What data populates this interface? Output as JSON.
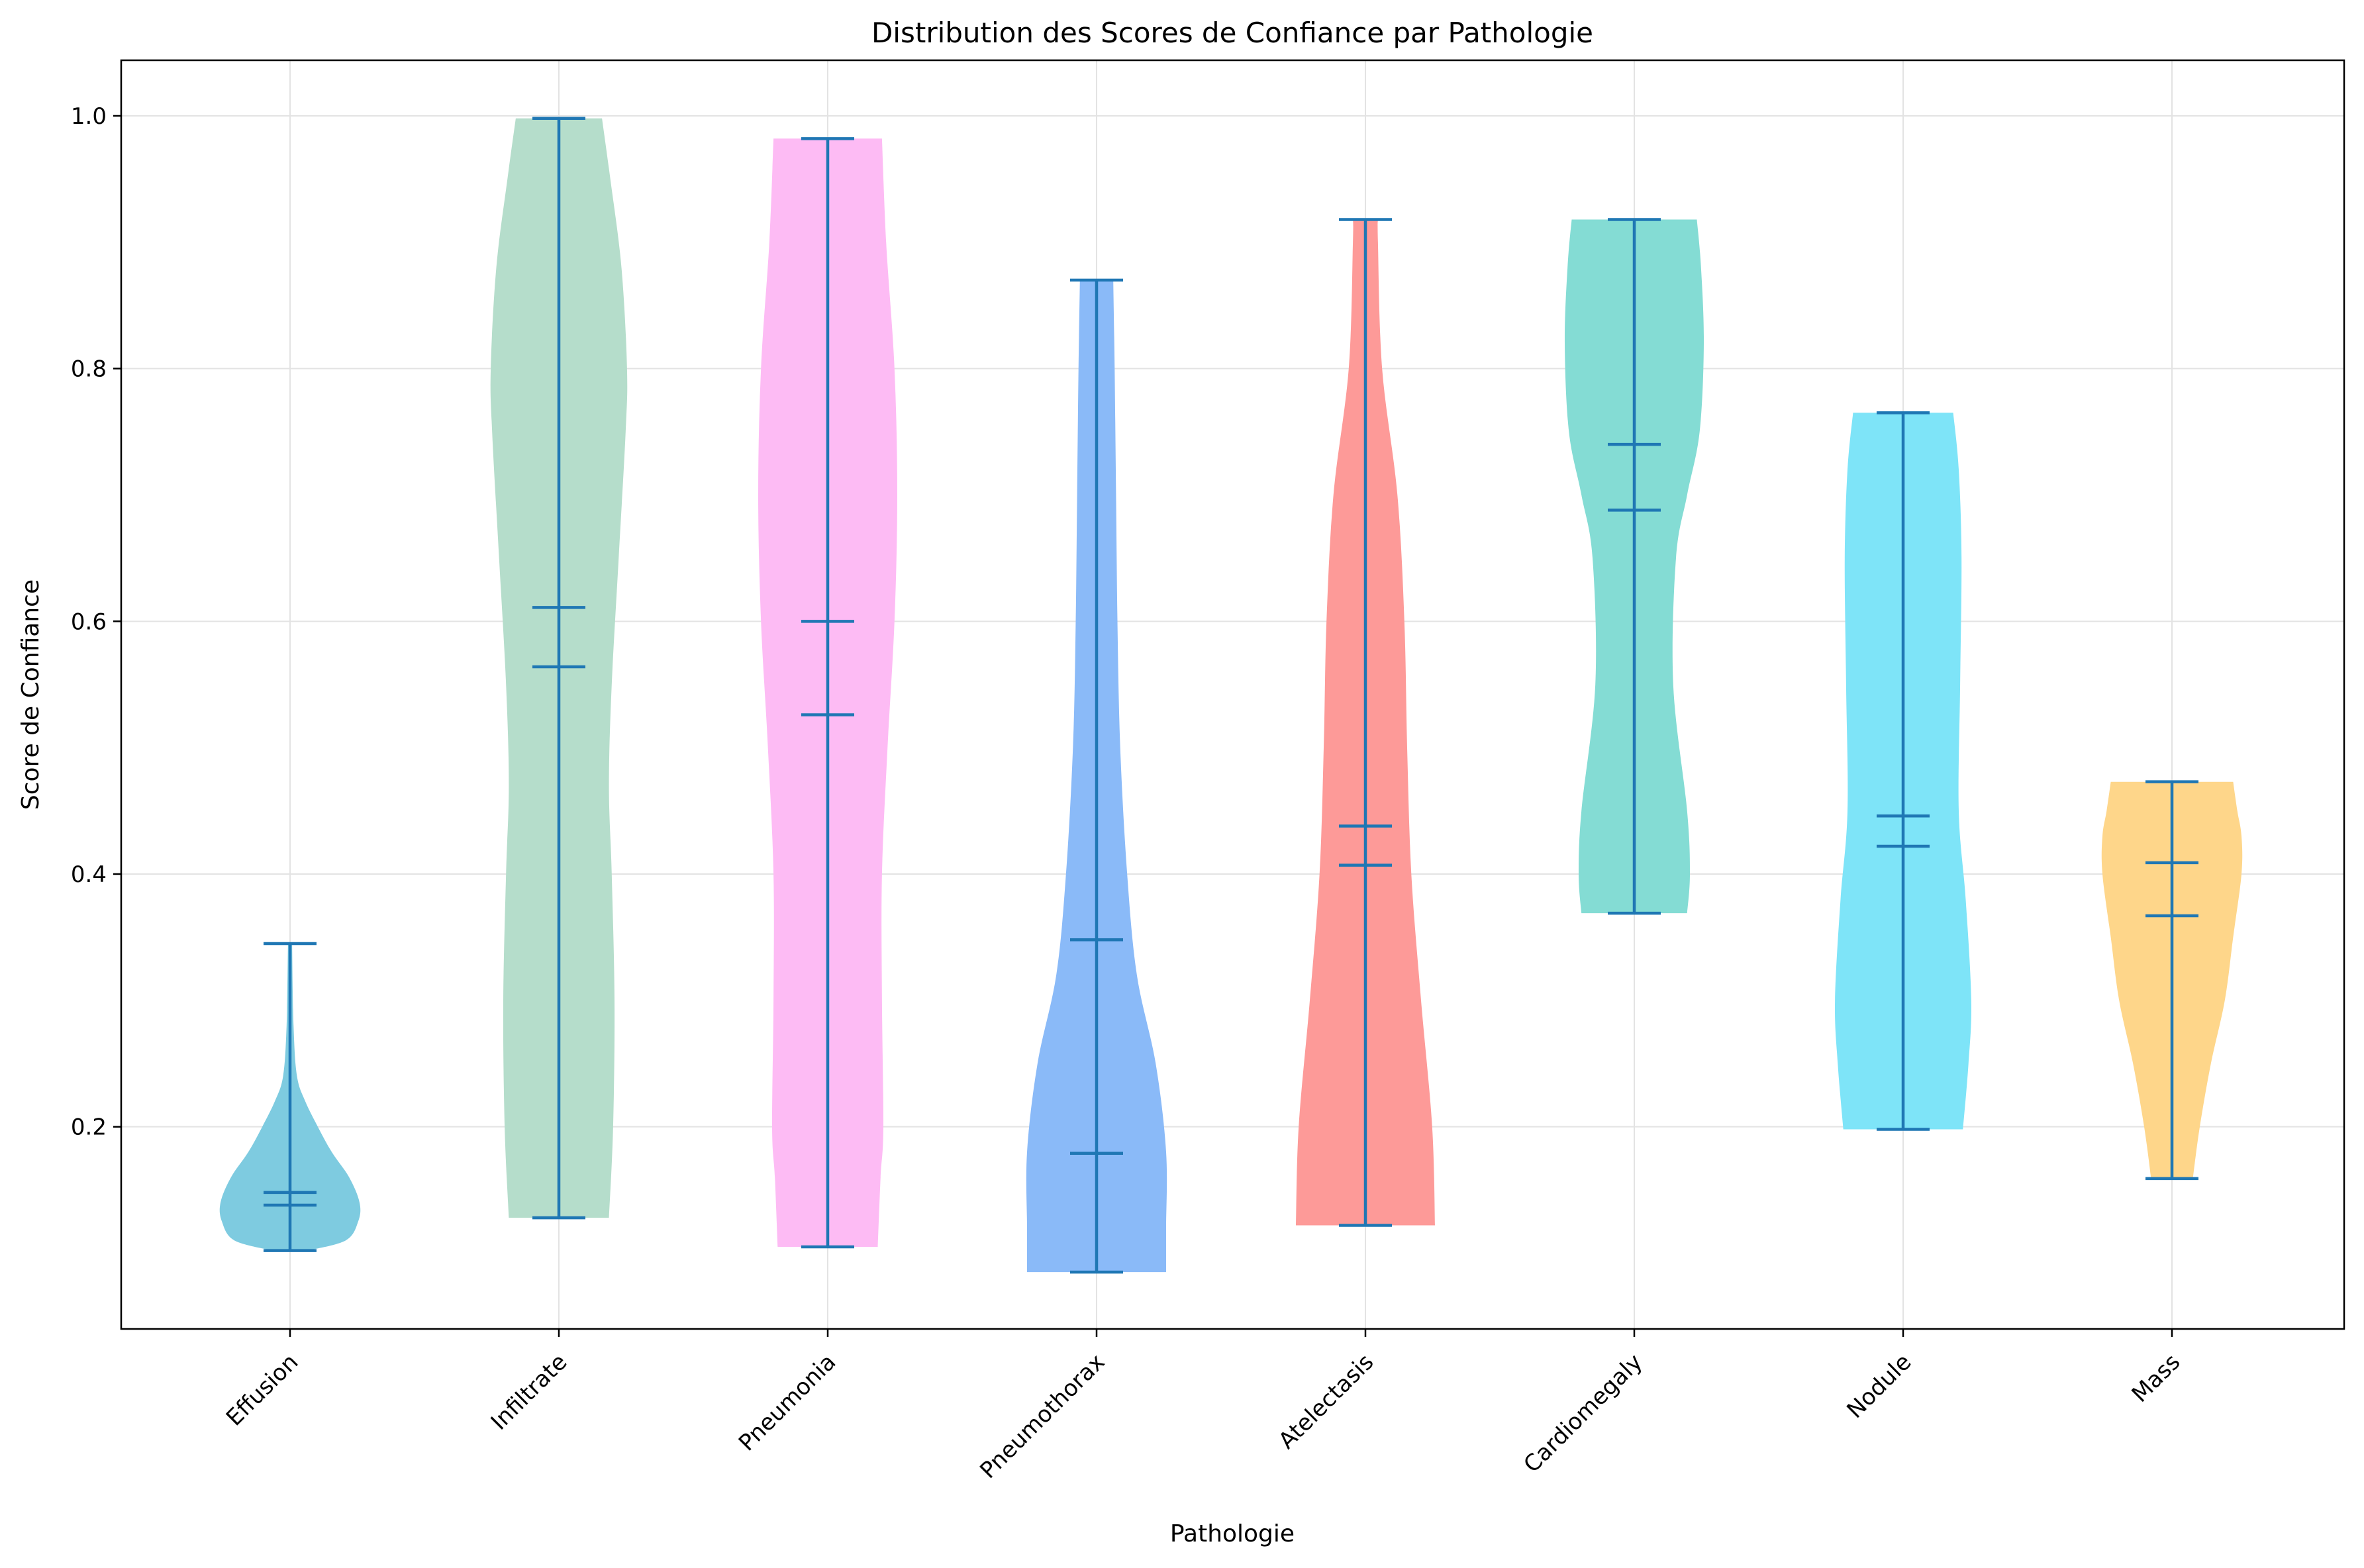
{
  "chart_data": {
    "type": "violin",
    "title": "Distribution des Scores de Confiance par Pathologie",
    "xlabel": "Pathologie",
    "ylabel": "Score de Confiance",
    "ylim": [
      0.04,
      1.044
    ],
    "yticks": [
      "0.2",
      "0.4",
      "0.6",
      "0.8",
      "1.0"
    ],
    "grid": true,
    "stat_line_color": "#1f77b4",
    "categories": [
      {
        "name": "Effusion",
        "color": "#7ecbe0",
        "min": 0.102,
        "max": 0.345,
        "mean": 0.148,
        "median": 0.138,
        "profile": [
          [
            0.102,
            0.25
          ],
          [
            0.11,
            0.8
          ],
          [
            0.125,
            0.98
          ],
          [
            0.14,
            1.0
          ],
          [
            0.16,
            0.85
          ],
          [
            0.18,
            0.6
          ],
          [
            0.2,
            0.4
          ],
          [
            0.22,
            0.22
          ],
          [
            0.24,
            0.1
          ],
          [
            0.28,
            0.05
          ],
          [
            0.345,
            0.03
          ]
        ]
      },
      {
        "name": "Infiltrate",
        "color": "#b5ddcb",
        "min": 0.128,
        "max": 0.998,
        "mean": 0.611,
        "median": 0.564,
        "profile": [
          [
            0.128,
            0.72
          ],
          [
            0.2,
            0.78
          ],
          [
            0.3,
            0.8
          ],
          [
            0.4,
            0.76
          ],
          [
            0.47,
            0.72
          ],
          [
            0.55,
            0.76
          ],
          [
            0.65,
            0.86
          ],
          [
            0.75,
            0.96
          ],
          [
            0.8,
            0.98
          ],
          [
            0.88,
            0.9
          ],
          [
            0.95,
            0.74
          ],
          [
            0.998,
            0.62
          ]
        ]
      },
      {
        "name": "Pneumonia",
        "color": "#fdbbf4",
        "min": 0.105,
        "max": 0.982,
        "mean": 0.6,
        "median": 0.526,
        "profile": [
          [
            0.105,
            0.72
          ],
          [
            0.16,
            0.76
          ],
          [
            0.2,
            0.8
          ],
          [
            0.3,
            0.78
          ],
          [
            0.4,
            0.78
          ],
          [
            0.5,
            0.86
          ],
          [
            0.6,
            0.96
          ],
          [
            0.7,
            1.0
          ],
          [
            0.8,
            0.96
          ],
          [
            0.9,
            0.84
          ],
          [
            0.982,
            0.78
          ]
        ]
      },
      {
        "name": "Pneumothorax",
        "color": "#8abaf8",
        "min": 0.085,
        "max": 0.87,
        "mean": 0.348,
        "median": 0.179,
        "profile": [
          [
            0.085,
            1.0
          ],
          [
            0.12,
            1.0
          ],
          [
            0.18,
            1.0
          ],
          [
            0.25,
            0.85
          ],
          [
            0.32,
            0.58
          ],
          [
            0.4,
            0.44
          ],
          [
            0.5,
            0.34
          ],
          [
            0.6,
            0.3
          ],
          [
            0.7,
            0.28
          ],
          [
            0.8,
            0.26
          ],
          [
            0.87,
            0.24
          ]
        ]
      },
      {
        "name": "Atelectasis",
        "color": "#fd9a98",
        "min": 0.122,
        "max": 0.918,
        "mean": 0.438,
        "median": 0.407,
        "profile": [
          [
            0.122,
            1.0
          ],
          [
            0.2,
            0.96
          ],
          [
            0.3,
            0.8
          ],
          [
            0.4,
            0.66
          ],
          [
            0.5,
            0.6
          ],
          [
            0.6,
            0.56
          ],
          [
            0.7,
            0.46
          ],
          [
            0.8,
            0.24
          ],
          [
            0.9,
            0.18
          ],
          [
            0.918,
            0.18
          ]
        ]
      },
      {
        "name": "Cardiomegaly",
        "color": "#84dcd4",
        "min": 0.369,
        "max": 0.918,
        "mean": 0.74,
        "median": 0.688,
        "profile": [
          [
            0.369,
            0.76
          ],
          [
            0.4,
            0.8
          ],
          [
            0.45,
            0.76
          ],
          [
            0.55,
            0.56
          ],
          [
            0.65,
            0.6
          ],
          [
            0.7,
            0.76
          ],
          [
            0.75,
            0.94
          ],
          [
            0.82,
            1.0
          ],
          [
            0.88,
            0.96
          ],
          [
            0.918,
            0.9
          ]
        ]
      },
      {
        "name": "Nodule",
        "color": "#7ee4f8",
        "min": 0.198,
        "max": 0.765,
        "mean": 0.446,
        "median": 0.422,
        "profile": [
          [
            0.198,
            0.86
          ],
          [
            0.25,
            0.94
          ],
          [
            0.3,
            0.98
          ],
          [
            0.38,
            0.9
          ],
          [
            0.45,
            0.8
          ],
          [
            0.55,
            0.82
          ],
          [
            0.65,
            0.84
          ],
          [
            0.72,
            0.8
          ],
          [
            0.765,
            0.72
          ]
        ]
      },
      {
        "name": "Mass",
        "color": "#fed68a",
        "min": 0.159,
        "max": 0.473,
        "mean": 0.409,
        "median": 0.367,
        "profile": [
          [
            0.159,
            0.3
          ],
          [
            0.2,
            0.4
          ],
          [
            0.25,
            0.56
          ],
          [
            0.3,
            0.76
          ],
          [
            0.35,
            0.88
          ],
          [
            0.4,
            1.0
          ],
          [
            0.43,
            1.0
          ],
          [
            0.45,
            0.94
          ],
          [
            0.473,
            0.88
          ]
        ]
      }
    ]
  }
}
